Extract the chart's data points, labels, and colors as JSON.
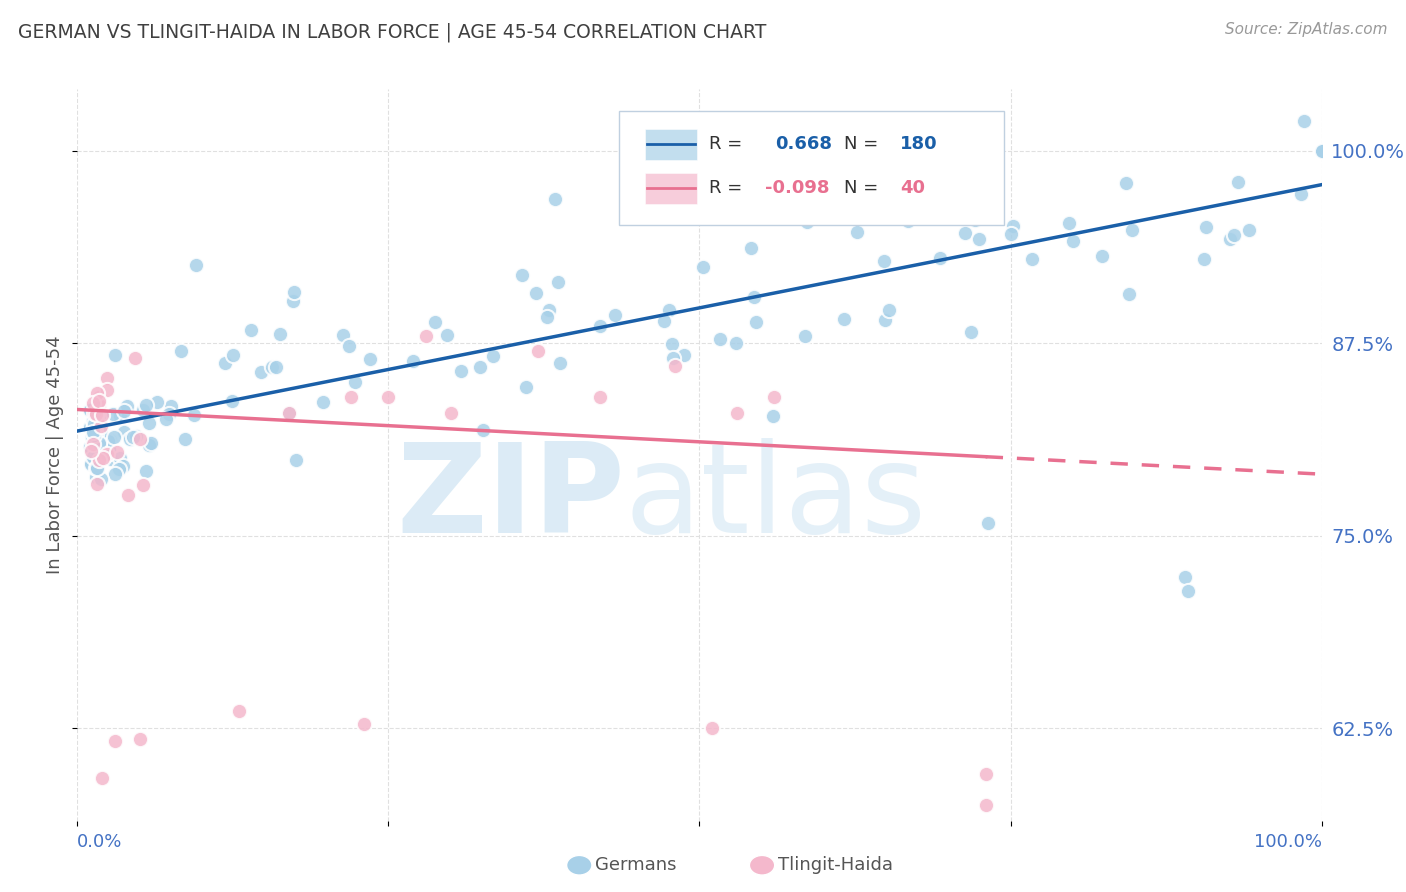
{
  "title": "GERMAN VS TLINGIT-HAIDA IN LABOR FORCE | AGE 45-54 CORRELATION CHART",
  "source": "Source: ZipAtlas.com",
  "ylabel": "In Labor Force | Age 45-54",
  "ytick_values": [
    0.625,
    0.75,
    0.875,
    1.0
  ],
  "xlim": [
    0.0,
    1.0
  ],
  "ylim": [
    0.565,
    1.04
  ],
  "blue_color": "#a8d0e8",
  "pink_color": "#f4b8cc",
  "blue_line_color": "#1a5fa8",
  "pink_line_color": "#e87090",
  "background_color": "#ffffff",
  "grid_color": "#e0e0e0",
  "title_color": "#404040",
  "axis_label_color": "#4472c4",
  "right_axis_color": "#4472c4",
  "watermark_zip_color": "#c5dff0",
  "watermark_atlas_color": "#c5dff0",
  "legend_box_color": "#f0f4f8",
  "legend_border_color": "#c0d0e0",
  "r1_color": "#1a5fa8",
  "r2_color": "#e87090",
  "n1_color": "#1a5fa8",
  "n2_color": "#e87090"
}
